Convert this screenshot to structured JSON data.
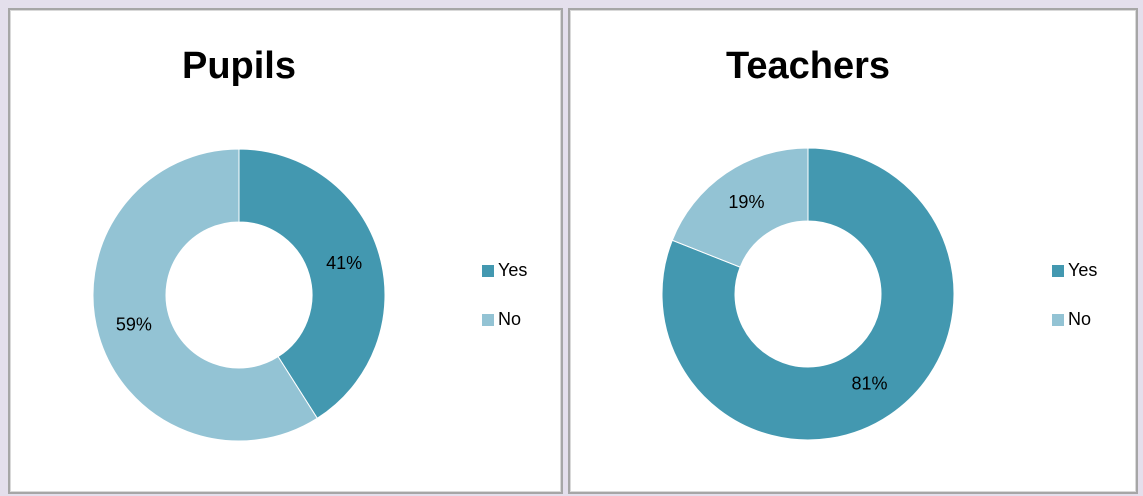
{
  "chart_data": [
    {
      "type": "donut",
      "title": "Pupils",
      "categories": [
        "Yes",
        "No"
      ],
      "values": [
        41,
        59
      ],
      "value_labels": [
        "41%",
        "59%"
      ],
      "colors": [
        "#4398b0",
        "#93c3d4"
      ]
    },
    {
      "type": "donut",
      "title": "Teachers",
      "categories": [
        "Yes",
        "No"
      ],
      "values": [
        81,
        19
      ],
      "value_labels": [
        "81%",
        "19%"
      ],
      "colors": [
        "#4398b0",
        "#93c3d4"
      ]
    }
  ]
}
